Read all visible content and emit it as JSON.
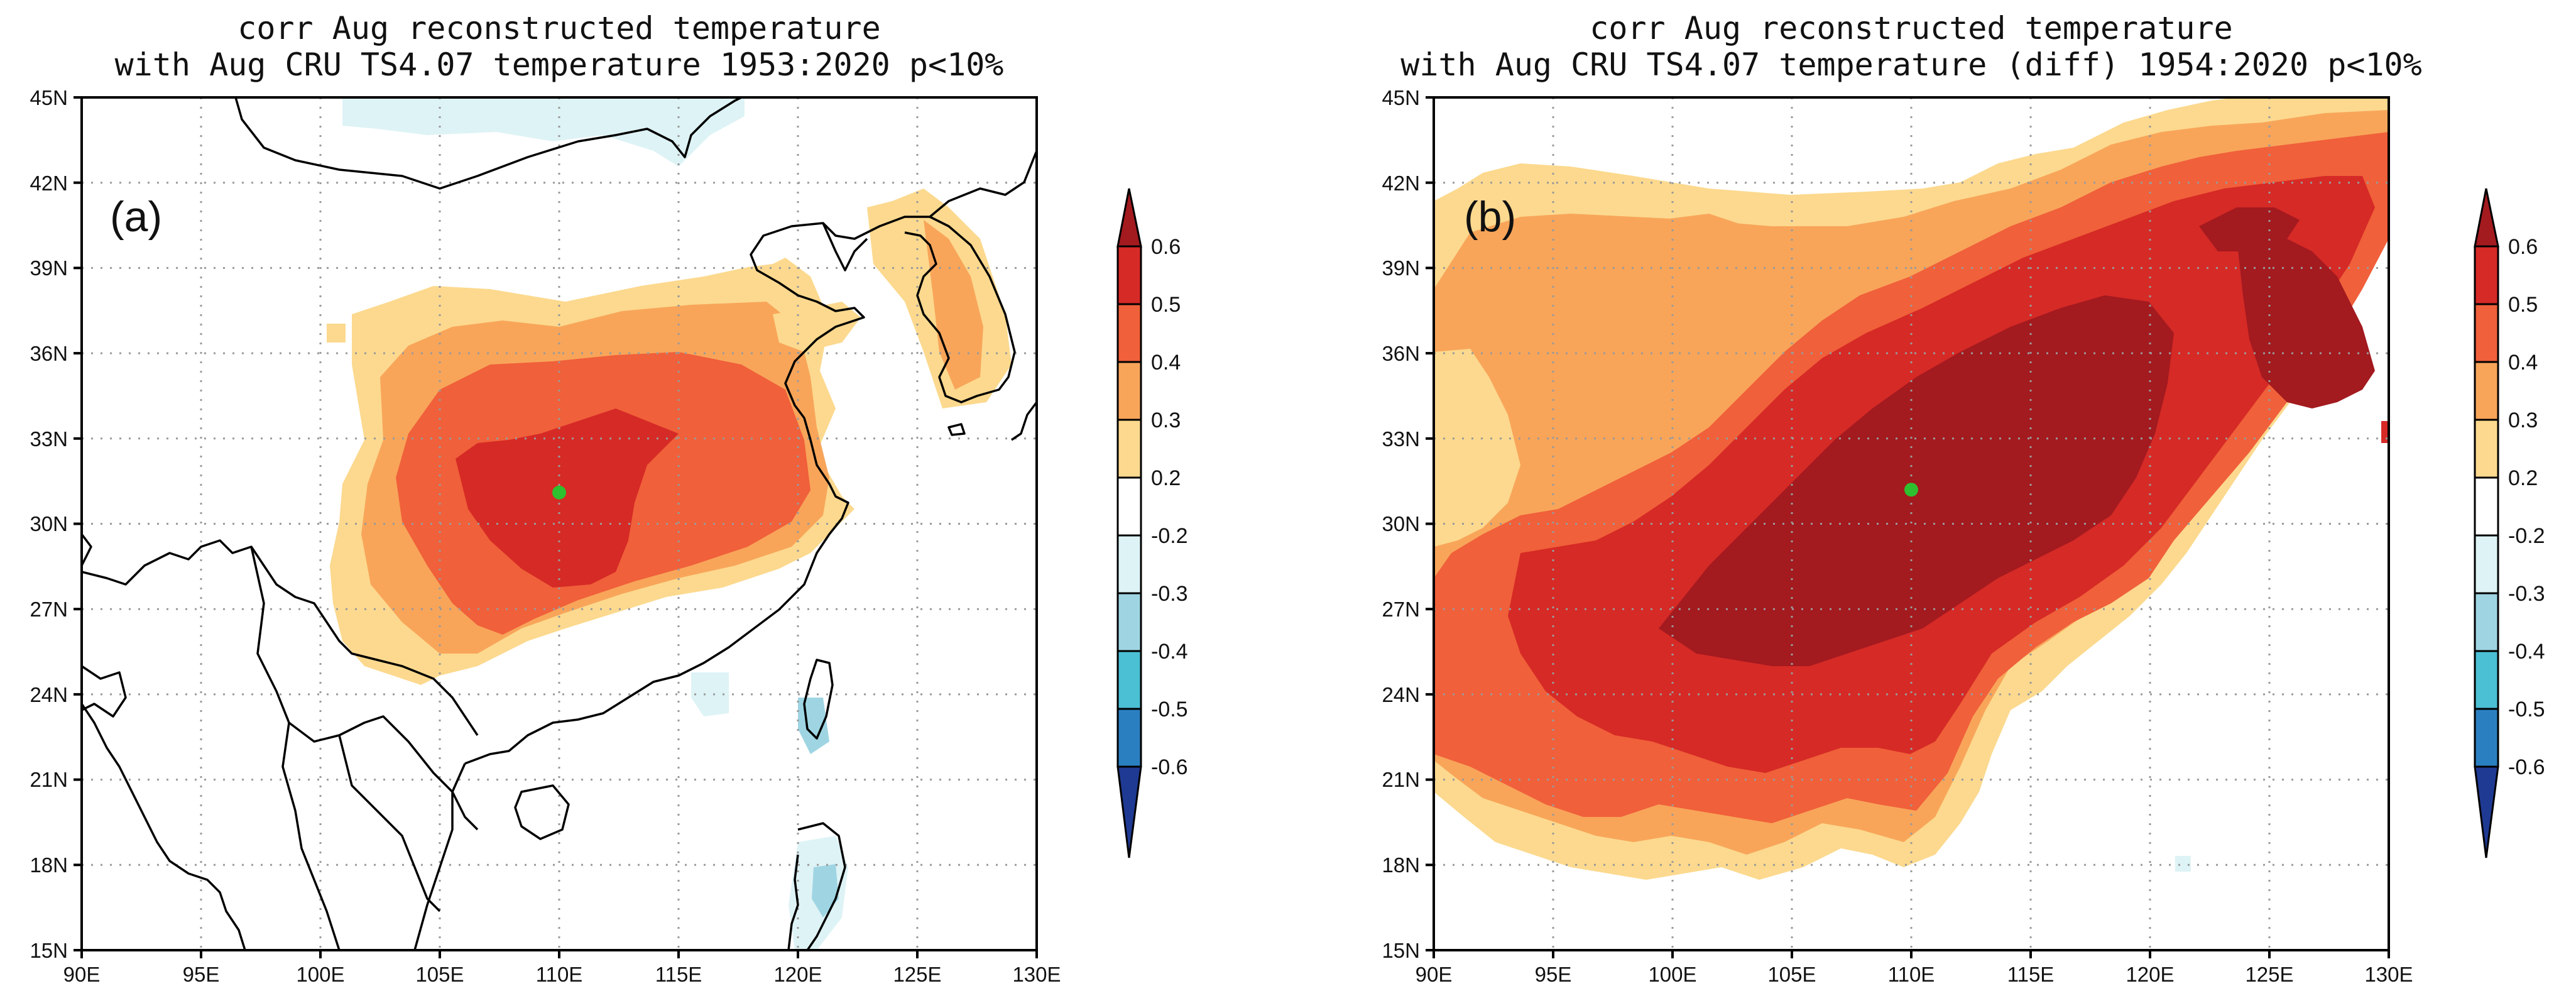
{
  "panels": [
    {
      "id": "a",
      "label": "(a)",
      "title_line1": "corr Aug reconstructed temperature",
      "title_line2": "with Aug CRU TS4.07 temperature 1953:2020 p<10%",
      "marker": {
        "lon": 110.0,
        "lat": 31.1,
        "color": "#2ec02e"
      }
    },
    {
      "id": "b",
      "label": "(b)",
      "title_line1": "corr Aug reconstructed temperature",
      "title_line2": "with Aug CRU TS4.07 temperature (diff) 1954:2020 p<10%",
      "marker": {
        "lon": 110.0,
        "lat": 31.2,
        "color": "#2ec02e"
      }
    }
  ],
  "map_extent": {
    "lon_min": 90,
    "lon_max": 130,
    "lat_min": 15,
    "lat_max": 45
  },
  "lon_ticks": [
    "90E",
    "95E",
    "100E",
    "105E",
    "110E",
    "115E",
    "120E",
    "125E",
    "130E"
  ],
  "lat_ticks": [
    "15N",
    "18N",
    "21N",
    "24N",
    "27N",
    "30N",
    "33N",
    "36N",
    "39N",
    "42N",
    "45N"
  ],
  "colorbar": {
    "labels": [
      "0.6",
      "0.5",
      "0.4",
      "0.3",
      "0.2",
      "-0.2",
      "-0.3",
      "-0.4",
      "-0.5",
      "-0.6"
    ],
    "colors": {
      "gt06": "#a31a1f",
      "c05_06": "#d62a26",
      "c04_05": "#f0603a",
      "c03_04": "#f8a55a",
      "c02_03": "#fcd98e",
      "neutral": "#ffffff",
      "n02_03": "#def3f6",
      "n03_04": "#9fd5e3",
      "n04_05": "#4bbfd3",
      "n05_06": "#2a7fc0",
      "lt_n06": "#1f3a93"
    }
  }
}
